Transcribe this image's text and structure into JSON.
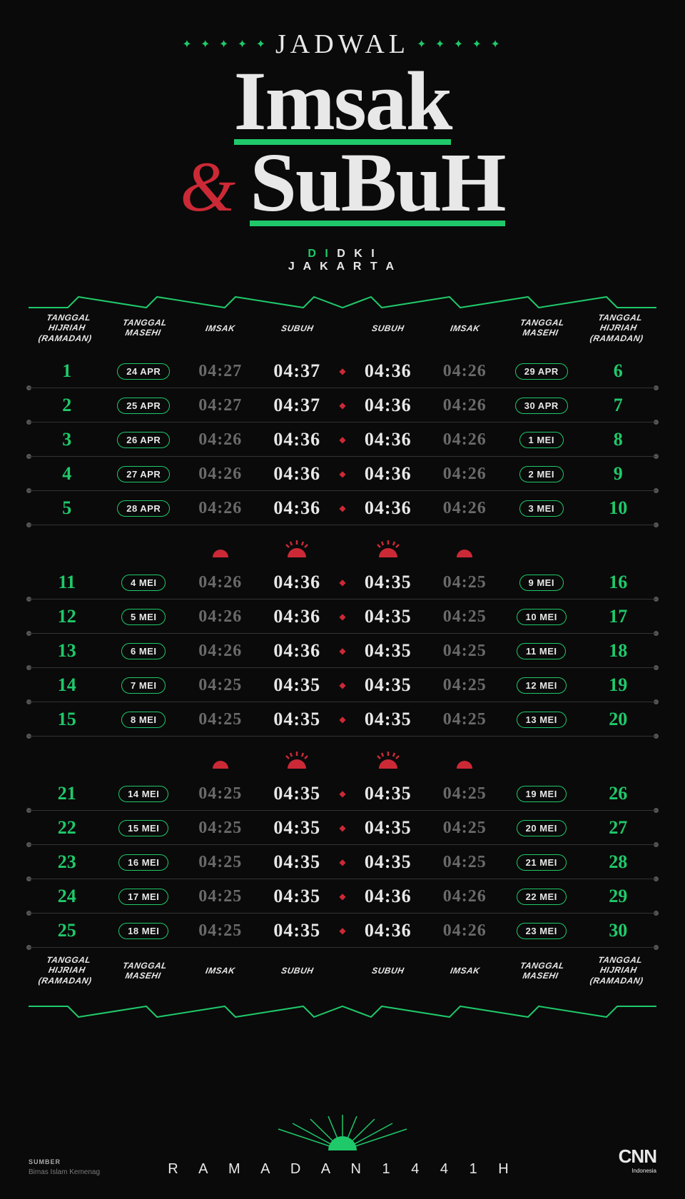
{
  "header": {
    "overline": "JADWAL",
    "word1": "Imsak",
    "amp": "&",
    "word2": "SuBuH",
    "loc_prefix": "D I",
    "loc_line1": "D K I",
    "loc_line2": "J A K A R T A"
  },
  "colors": {
    "green": "#1fc96a",
    "red": "#cc2936",
    "bg": "#0a0a0a",
    "text": "#e8e8e8",
    "dim": "#6a6a6a"
  },
  "columns": {
    "hijri": "TANGGAL HIJRIAH (RAMADAN)",
    "masehi": "TANGGAL MASEHI",
    "imsak": "IMSAK",
    "subuh": "SUBUH"
  },
  "blocks": [
    {
      "left": [
        {
          "h": "1",
          "m": "24 APR",
          "i": "04:27",
          "s": "04:37"
        },
        {
          "h": "2",
          "m": "25 APR",
          "i": "04:27",
          "s": "04:37"
        },
        {
          "h": "3",
          "m": "26 APR",
          "i": "04:26",
          "s": "04:36"
        },
        {
          "h": "4",
          "m": "27 APR",
          "i": "04:26",
          "s": "04:36"
        },
        {
          "h": "5",
          "m": "28 APR",
          "i": "04:26",
          "s": "04:36"
        }
      ],
      "right": [
        {
          "h": "6",
          "m": "29 APR",
          "i": "04:26",
          "s": "04:36"
        },
        {
          "h": "7",
          "m": "30 APR",
          "i": "04:26",
          "s": "04:36"
        },
        {
          "h": "8",
          "m": "1 MEI",
          "i": "04:26",
          "s": "04:36"
        },
        {
          "h": "9",
          "m": "2 MEI",
          "i": "04:26",
          "s": "04:36"
        },
        {
          "h": "10",
          "m": "3 MEI",
          "i": "04:26",
          "s": "04:36"
        }
      ]
    },
    {
      "left": [
        {
          "h": "11",
          "m": "4 MEI",
          "i": "04:26",
          "s": "04:36"
        },
        {
          "h": "12",
          "m": "5 MEI",
          "i": "04:26",
          "s": "04:36"
        },
        {
          "h": "13",
          "m": "6 MEI",
          "i": "04:26",
          "s": "04:36"
        },
        {
          "h": "14",
          "m": "7 MEI",
          "i": "04:25",
          "s": "04:35"
        },
        {
          "h": "15",
          "m": "8 MEI",
          "i": "04:25",
          "s": "04:35"
        }
      ],
      "right": [
        {
          "h": "16",
          "m": "9 MEI",
          "i": "04:25",
          "s": "04:35"
        },
        {
          "h": "17",
          "m": "10 MEI",
          "i": "04:25",
          "s": "04:35"
        },
        {
          "h": "18",
          "m": "11 MEI",
          "i": "04:25",
          "s": "04:35"
        },
        {
          "h": "19",
          "m": "12 MEI",
          "i": "04:25",
          "s": "04:35"
        },
        {
          "h": "20",
          "m": "13 MEI",
          "i": "04:25",
          "s": "04:35"
        }
      ]
    },
    {
      "left": [
        {
          "h": "21",
          "m": "14 MEI",
          "i": "04:25",
          "s": "04:35"
        },
        {
          "h": "22",
          "m": "15 MEI",
          "i": "04:25",
          "s": "04:35"
        },
        {
          "h": "23",
          "m": "16 MEI",
          "i": "04:25",
          "s": "04:35"
        },
        {
          "h": "24",
          "m": "17 MEI",
          "i": "04:25",
          "s": "04:35"
        },
        {
          "h": "25",
          "m": "18 MEI",
          "i": "04:25",
          "s": "04:35"
        }
      ],
      "right": [
        {
          "h": "26",
          "m": "19 MEI",
          "i": "04:25",
          "s": "04:35"
        },
        {
          "h": "27",
          "m": "20 MEI",
          "i": "04:25",
          "s": "04:35"
        },
        {
          "h": "28",
          "m": "21 MEI",
          "i": "04:25",
          "s": "04:35"
        },
        {
          "h": "29",
          "m": "22 MEI",
          "i": "04:26",
          "s": "04:36"
        },
        {
          "h": "30",
          "m": "23 MEI",
          "i": "04:26",
          "s": "04:36"
        }
      ]
    }
  ],
  "footer": {
    "year_text": "R A M A D A N   1 4 4 1 H",
    "source_label": "SUMBER",
    "source_text": "Bimas Islam Kemenag",
    "logo": "CNN",
    "logo_sub": "Indonesia"
  }
}
